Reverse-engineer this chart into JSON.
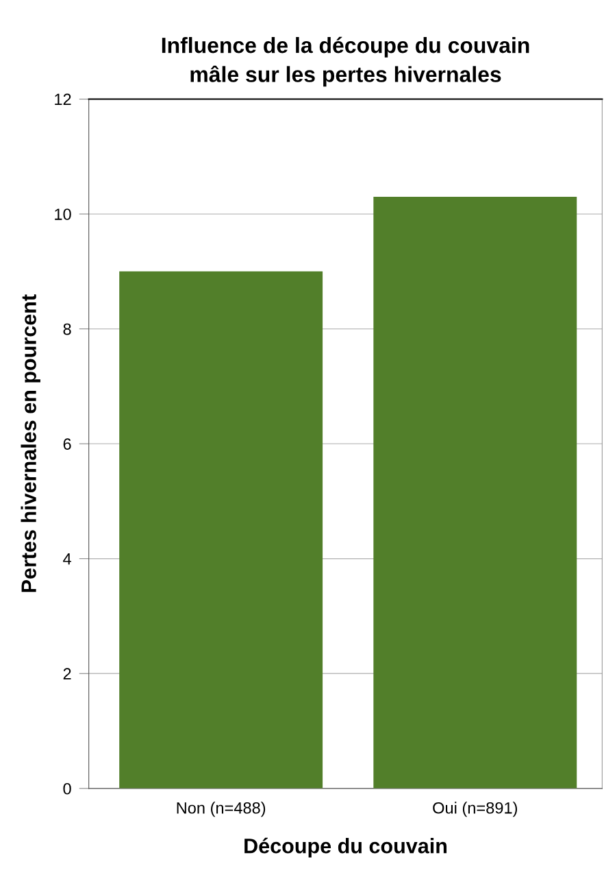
{
  "chart_data": {
    "type": "bar",
    "title": "Influence de la découpe du couvain\nmâle sur les pertes hivernales",
    "xlabel": "Découpe du couvain",
    "ylabel": "Pertes hivernales en pourcent",
    "categories": [
      "Non (n=488)",
      "Oui (n=891)"
    ],
    "values": [
      9.0,
      10.3
    ],
    "color": "#527f2a",
    "ylim": [
      0,
      12
    ],
    "yticks": [
      0,
      2,
      4,
      6,
      8,
      10,
      12
    ],
    "grid": "y",
    "legend": false
  }
}
